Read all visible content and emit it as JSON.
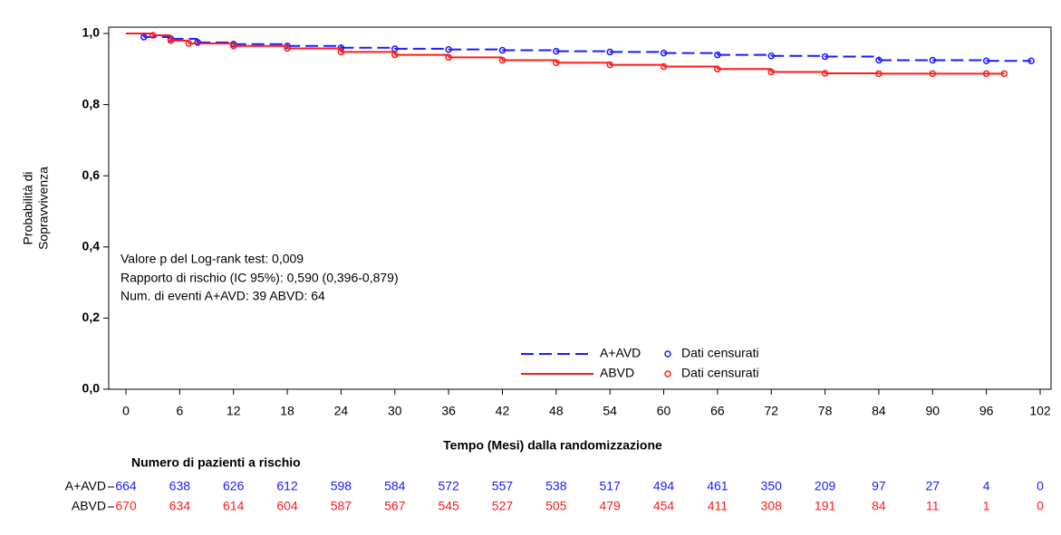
{
  "chart_data": {
    "type": "km",
    "y_label": [
      "Probabilità di",
      "Sopravvivenza"
    ],
    "x_label": "Tempo (Mesi) dalla randomizzazione",
    "xlim": [
      0,
      102
    ],
    "xticks": [
      0,
      6,
      12,
      18,
      24,
      30,
      36,
      42,
      48,
      54,
      60,
      66,
      72,
      78,
      84,
      90,
      96,
      102
    ],
    "ylim": [
      0,
      1
    ],
    "yticks": [
      {
        "value": 0,
        "label": "0,0"
      },
      {
        "value": 0.2,
        "label": "0,2"
      },
      {
        "value": 0.4,
        "label": "0,4"
      },
      {
        "value": 0.6,
        "label": "0,6"
      },
      {
        "value": 0.8,
        "label": "0,8"
      },
      {
        "value": 1,
        "label": "1,0"
      }
    ],
    "annotations": [
      "Valore p del Log-rank test: 0,009",
      "Rapporto di rischio (IC 95%): 0,590 (0,396-0,879)",
      "Num. di eventi A+AVD: 39 ABVD: 64"
    ],
    "censored_label": "Dati censurati",
    "series": [
      {
        "name": "A+AVD",
        "color": "#1a1aff",
        "dashed": true,
        "x": [
          0,
          2,
          5,
          8,
          12,
          18,
          24,
          30,
          36,
          42,
          48,
          54,
          60,
          66,
          72,
          78,
          84,
          90,
          96,
          101
        ],
        "values": [
          1.0,
          0.99,
          0.985,
          0.975,
          0.97,
          0.965,
          0.96,
          0.957,
          0.955,
          0.953,
          0.95,
          0.948,
          0.945,
          0.94,
          0.937,
          0.935,
          0.925,
          0.925,
          0.923,
          0.923
        ]
      },
      {
        "name": "ABVD",
        "color": "#ff1a1a",
        "dashed": false,
        "x": [
          0,
          3,
          5,
          7,
          12,
          18,
          24,
          30,
          36,
          42,
          48,
          54,
          60,
          66,
          72,
          78,
          84,
          90,
          96,
          98
        ],
        "values": [
          1.0,
          0.995,
          0.98,
          0.972,
          0.965,
          0.958,
          0.948,
          0.94,
          0.933,
          0.925,
          0.918,
          0.912,
          0.907,
          0.9,
          0.892,
          0.888,
          0.887,
          0.887,
          0.887,
          0.887
        ]
      }
    ],
    "risk_table": {
      "title": "Numero di pazienti a rischio",
      "months": [
        0,
        6,
        12,
        18,
        24,
        30,
        36,
        42,
        48,
        54,
        60,
        66,
        72,
        78,
        84,
        90,
        96,
        102
      ],
      "rows": [
        {
          "name": "A+AVD",
          "color": "#1a1aff",
          "values": [
            664,
            638,
            626,
            612,
            598,
            584,
            572,
            557,
            538,
            517,
            494,
            461,
            350,
            209,
            97,
            27,
            4,
            0
          ]
        },
        {
          "name": "ABVD",
          "color": "#ff1a1a",
          "values": [
            670,
            634,
            614,
            604,
            587,
            567,
            545,
            527,
            505,
            479,
            454,
            411,
            308,
            191,
            84,
            11,
            1,
            0
          ]
        }
      ]
    }
  }
}
